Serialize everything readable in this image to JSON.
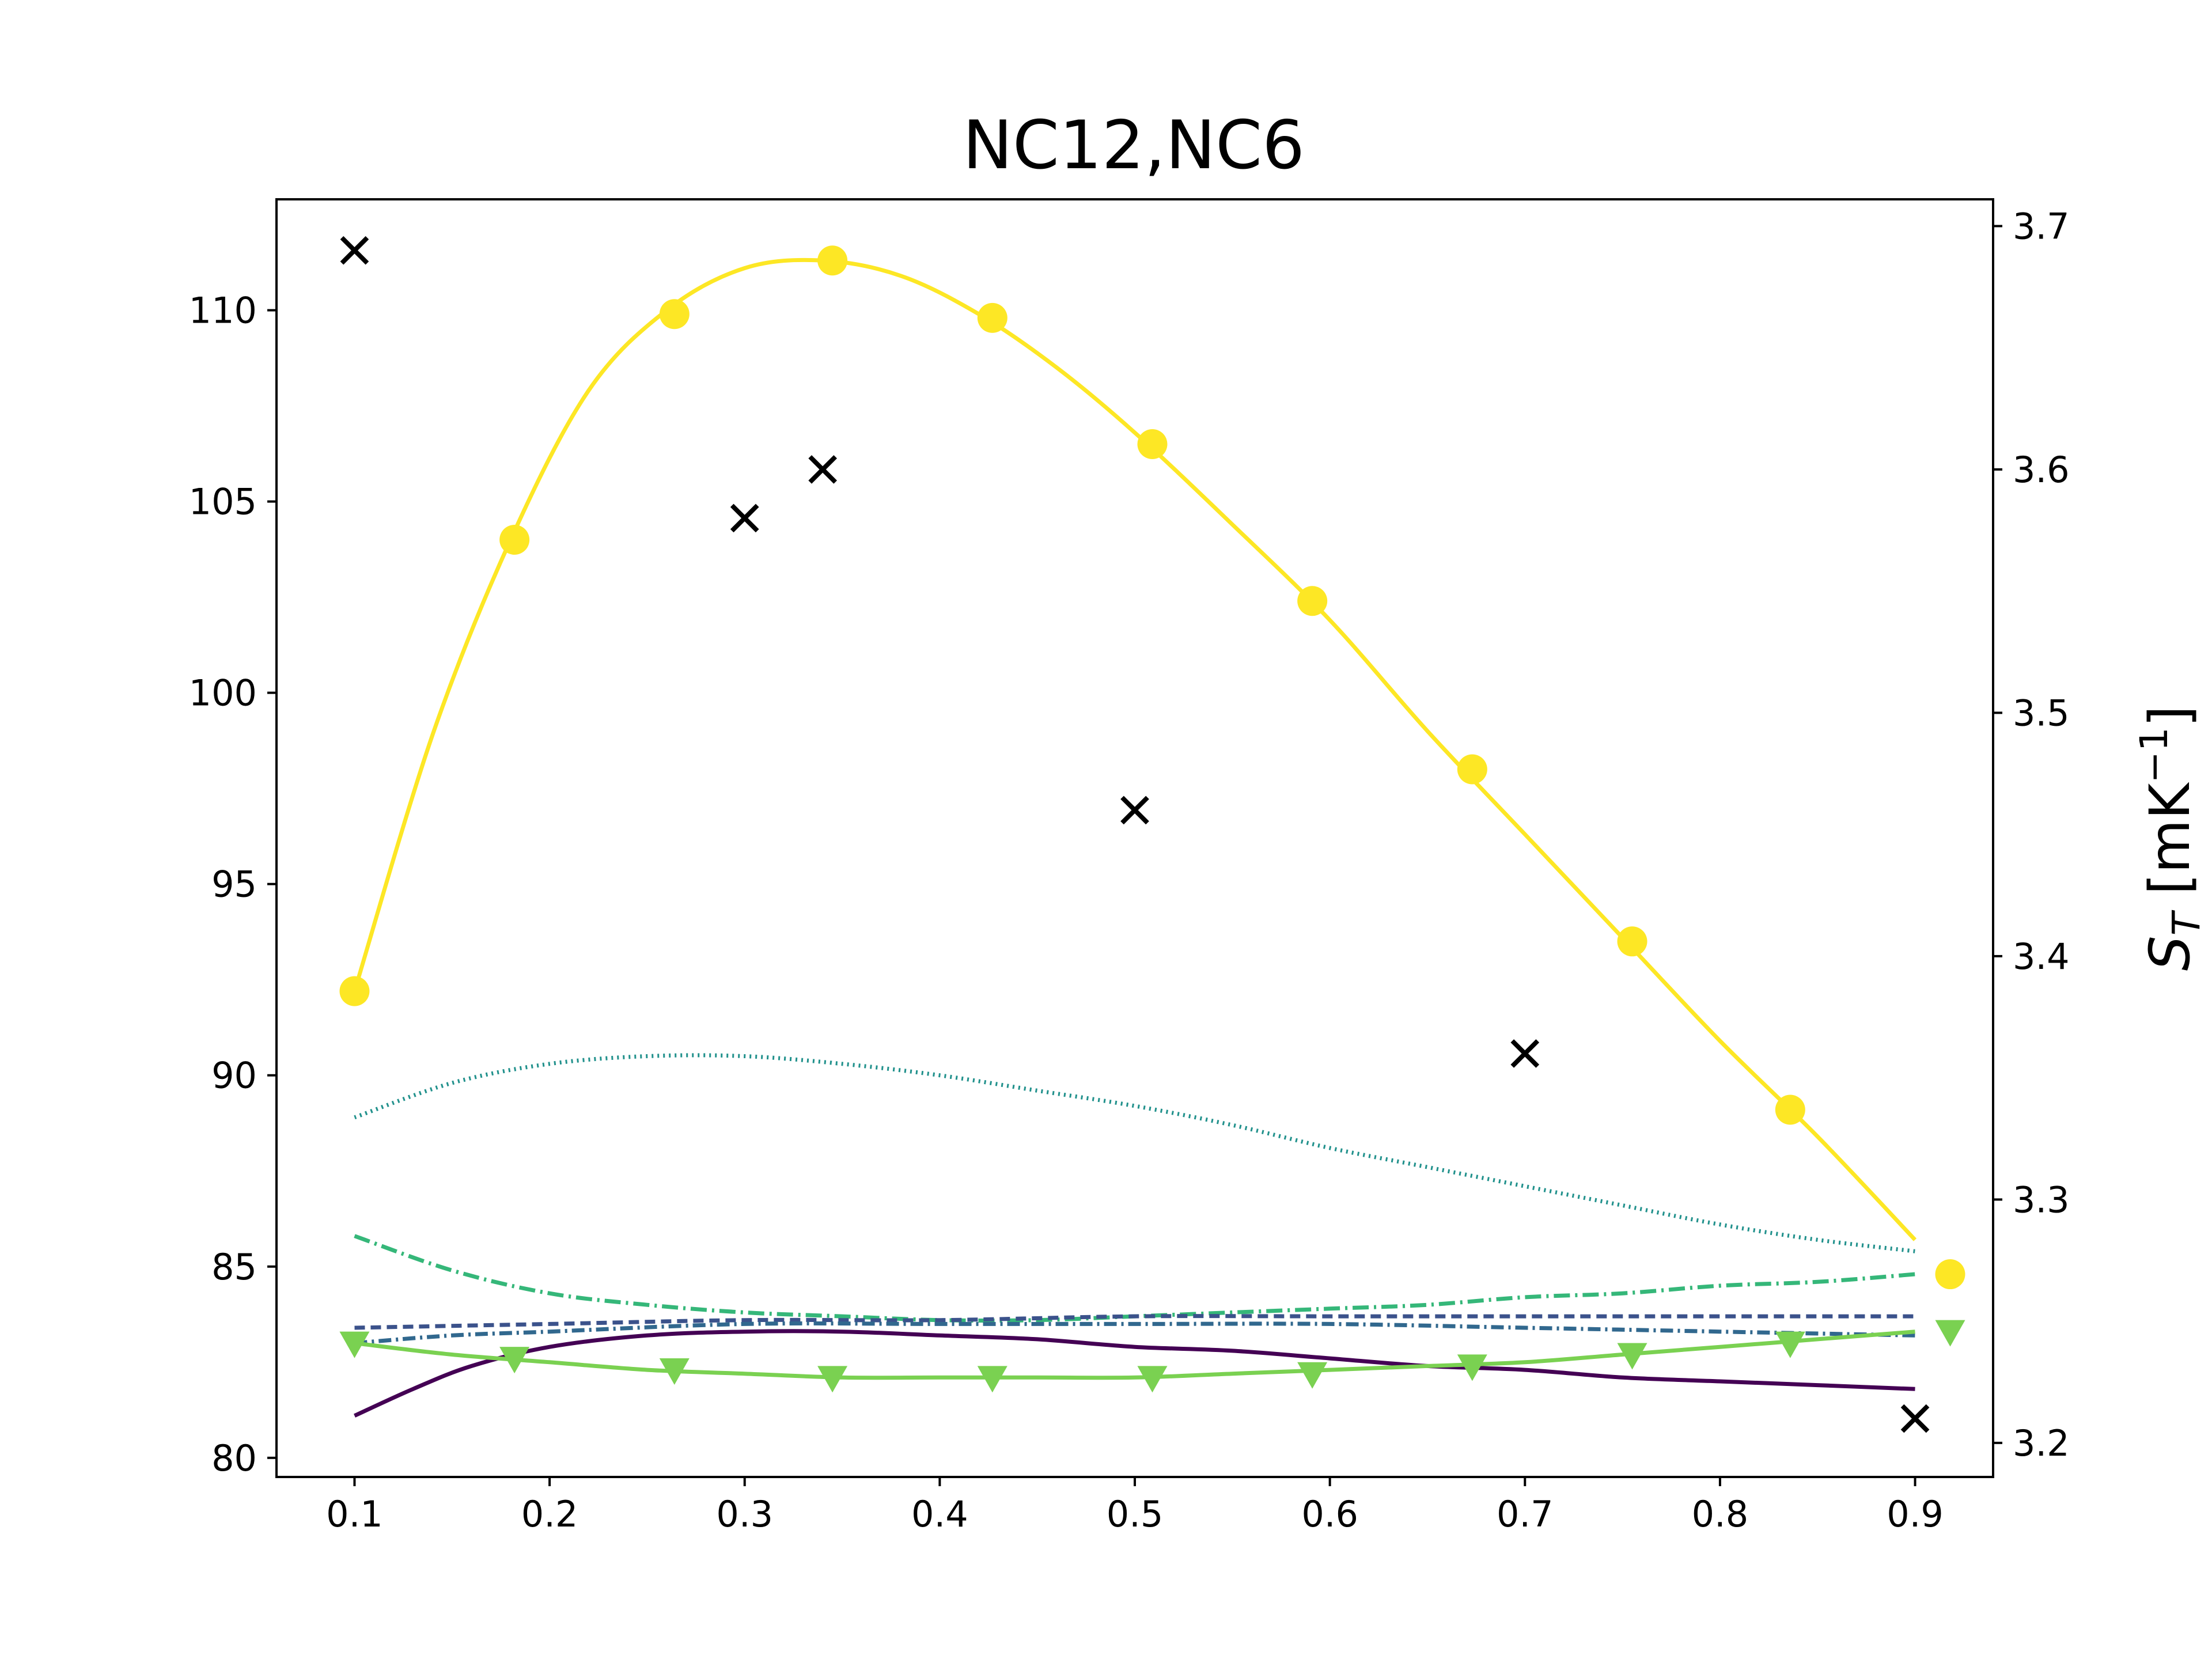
{
  "chart_data": {
    "type": "line",
    "title": "NC12,NC6",
    "xlabel": "",
    "ylabel_left": "",
    "ylabel_right": "S_T [mK⁻¹]",
    "ylabel_right_parts": {
      "symbol": "S",
      "subscript": "T",
      "unit_open": " [mK",
      "superscript": "−1",
      "unit_close": "]"
    },
    "xlim": [
      0.06,
      0.94
    ],
    "ylim_left": [
      79.5,
      112.9
    ],
    "ylim_right": [
      3.186,
      3.711
    ],
    "x_ticks": [
      0.1,
      0.2,
      0.3,
      0.4,
      0.5,
      0.6,
      0.7,
      0.8,
      0.9
    ],
    "x_tick_labels": [
      "0.1",
      "0.2",
      "0.3",
      "0.4",
      "0.5",
      "0.6",
      "0.7",
      "0.8",
      "0.9"
    ],
    "y_left_ticks": [
      80,
      85,
      90,
      95,
      100,
      105,
      110
    ],
    "y_left_tick_labels": [
      "80",
      "85",
      "90",
      "95",
      "100",
      "105",
      "110"
    ],
    "y_right_ticks": [
      3.2,
      3.3,
      3.4,
      3.5,
      3.6,
      3.7
    ],
    "y_right_tick_labels": [
      "3.2",
      "3.3",
      "3.4",
      "3.5",
      "3.6",
      "3.7"
    ],
    "grid": false,
    "legend": "none",
    "series": [
      {
        "axis": "left",
        "color": "#fde725",
        "dash": "",
        "marker": "circle",
        "x": [
          0.1,
          0.14,
          0.18,
          0.22,
          0.26,
          0.3,
          0.34,
          0.38,
          0.42,
          0.46,
          0.5,
          0.55,
          0.6,
          0.65,
          0.7,
          0.75,
          0.8,
          0.85,
          0.9
        ],
        "y": [
          92.2,
          98.9,
          104.0,
          107.9,
          110.0,
          111.1,
          111.3,
          110.9,
          109.9,
          108.5,
          106.8,
          104.4,
          101.9,
          99.0,
          96.3,
          93.6,
          90.9,
          88.4,
          85.7
        ],
        "marker_x": [
          0.1,
          0.182,
          0.264,
          0.345,
          0.427,
          0.509,
          0.591,
          0.673,
          0.755,
          0.836,
          0.918
        ],
        "marker_y": [
          92.2,
          104.0,
          109.9,
          111.3,
          109.8,
          106.5,
          102.4,
          98.0,
          93.5,
          89.1,
          84.8
        ]
      },
      {
        "axis": "left",
        "color": "#21918c",
        "dash": "3,7",
        "x": [
          0.1,
          0.15,
          0.2,
          0.25,
          0.3,
          0.35,
          0.4,
          0.45,
          0.5,
          0.55,
          0.6,
          0.65,
          0.7,
          0.75,
          0.8,
          0.85,
          0.9
        ],
        "y": [
          88.9,
          89.8,
          90.3,
          90.5,
          90.5,
          90.3,
          90.0,
          89.6,
          89.2,
          88.7,
          88.1,
          87.6,
          87.1,
          86.6,
          86.1,
          85.7,
          85.4
        ]
      },
      {
        "axis": "left",
        "color": "#35b779",
        "dash": "28,9,4,9",
        "x": [
          0.1,
          0.15,
          0.2,
          0.25,
          0.3,
          0.35,
          0.4,
          0.45,
          0.5,
          0.55,
          0.6,
          0.65,
          0.7,
          0.75,
          0.8,
          0.85,
          0.9
        ],
        "y": [
          85.8,
          84.9,
          84.3,
          84.0,
          83.8,
          83.7,
          83.6,
          83.6,
          83.7,
          83.8,
          83.9,
          84.0,
          84.2,
          84.3,
          84.5,
          84.6,
          84.8
        ]
      },
      {
        "axis": "left",
        "color": "#3b528b",
        "dash": "18,10",
        "x": [
          0.1,
          0.2,
          0.3,
          0.4,
          0.5,
          0.6,
          0.7,
          0.8,
          0.9
        ],
        "y": [
          83.4,
          83.5,
          83.6,
          83.6,
          83.7,
          83.7,
          83.7,
          83.7,
          83.7
        ]
      },
      {
        "axis": "left",
        "color": "#31688e",
        "dash": "22,8,4,8",
        "x": [
          0.1,
          0.15,
          0.2,
          0.3,
          0.4,
          0.5,
          0.6,
          0.7,
          0.8,
          0.9
        ],
        "y": [
          83.0,
          83.2,
          83.3,
          83.5,
          83.5,
          83.5,
          83.5,
          83.4,
          83.3,
          83.2
        ]
      },
      {
        "axis": "left",
        "color": "#440154",
        "dash": "",
        "x": [
          0.1,
          0.13,
          0.16,
          0.2,
          0.25,
          0.3,
          0.35,
          0.4,
          0.45,
          0.5,
          0.55,
          0.6,
          0.65,
          0.7,
          0.75,
          0.8,
          0.85,
          0.9
        ],
        "y": [
          81.1,
          81.8,
          82.4,
          82.9,
          83.2,
          83.3,
          83.3,
          83.2,
          83.1,
          82.9,
          82.8,
          82.6,
          82.4,
          82.3,
          82.1,
          82.0,
          81.9,
          81.8
        ]
      },
      {
        "axis": "left",
        "color": "#7ad151",
        "dash": "",
        "marker": "triangle-down",
        "x": [
          0.1,
          0.15,
          0.2,
          0.25,
          0.3,
          0.35,
          0.4,
          0.45,
          0.5,
          0.55,
          0.6,
          0.65,
          0.7,
          0.75,
          0.8,
          0.85,
          0.9
        ],
        "y": [
          83.0,
          82.7,
          82.5,
          82.3,
          82.2,
          82.1,
          82.1,
          82.1,
          82.1,
          82.2,
          82.3,
          82.4,
          82.5,
          82.7,
          82.9,
          83.1,
          83.3
        ],
        "marker_x": [
          0.1,
          0.182,
          0.264,
          0.345,
          0.427,
          0.509,
          0.591,
          0.673,
          0.755,
          0.836,
          0.918
        ],
        "marker_y": [
          83.0,
          82.6,
          82.3,
          82.1,
          82.1,
          82.1,
          82.2,
          82.4,
          82.7,
          83.0,
          83.3
        ]
      },
      {
        "axis": "right",
        "color": "#000000",
        "dash": "",
        "marker": "x",
        "line": false,
        "x": [
          0.1,
          0.3,
          0.34,
          0.5,
          0.7,
          0.9
        ],
        "y": [
          3.69,
          3.58,
          3.6,
          3.46,
          3.36,
          3.21
        ]
      }
    ]
  }
}
